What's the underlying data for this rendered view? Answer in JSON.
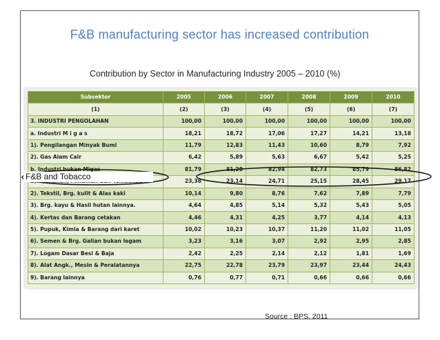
{
  "title": "F&B manufacturing sector has increased contribution",
  "subtitle": "Contribution by Sector  in  Manufacturing Industry  2005 – 2010 (%)",
  "callout_label": "F&B and Tobacco",
  "source": "Source : BPS, 2011",
  "table": {
    "header": [
      "Subsektor",
      "2005",
      "2006",
      "2007",
      "2008",
      "2009",
      "2010"
    ],
    "index_row": [
      "(1)",
      "(2)",
      "(3)",
      "(4)",
      "(5)",
      "(6)",
      "(7)"
    ],
    "rows": [
      {
        "label": "3. INDUSTRI PENGOLAHAN",
        "values": [
          "100,00",
          "100,00",
          "100,00",
          "100,00",
          "100,00",
          "100,00"
        ]
      },
      {
        "label": "a. Industri  M i g a s",
        "values": [
          "18,21",
          "18,72",
          "17,06",
          "17,27",
          "14,21",
          "13,18"
        ]
      },
      {
        "label": "1). Pengilangan Minyak Bumi",
        "values": [
          "11,79",
          "12,83",
          "11,43",
          "10,60",
          "8,79",
          "7,92"
        ]
      },
      {
        "label": "2). Gas Alam Cair",
        "values": [
          "6,42",
          "5,89",
          "5,63",
          "6,67",
          "5,42",
          "5,25"
        ]
      },
      {
        "label": "b. Industri bukan Migas",
        "values": [
          "81,79",
          "81,28",
          "82,94",
          "82,73",
          "85,79",
          "86,82"
        ]
      },
      {
        "label": "1). Makanan, Minuman dan Tembakau",
        "values": [
          "23,38",
          "23,14",
          "24,71",
          "25,15",
          "28,45",
          "29,17"
        ]
      },
      {
        "label": "2). Tekstil, Brg. kulit & Alas kaki",
        "values": [
          "10,14",
          "9,80",
          "8,76",
          "7,62",
          "7,89",
          "7,79"
        ]
      },
      {
        "label": "3). Brg. kayu & Hasil hutan lainnya.",
        "values": [
          "4,64",
          "4,85",
          "5,14",
          "5,32",
          "5,43",
          "5,05"
        ]
      },
      {
        "label": "4). Kertas dan Barang cetakan",
        "values": [
          "4,46",
          "4,31",
          "4,25",
          "3,77",
          "4,14",
          "4,13"
        ]
      },
      {
        "label": "5). Pupuk, Kimia & Barang dari karet",
        "values": [
          "10,02",
          "10,23",
          "10,37",
          "11,20",
          "11,02",
          "11,05"
        ]
      },
      {
        "label": "6). Semen & Brg. Galian bukan logam",
        "values": [
          "3,23",
          "3,16",
          "3,07",
          "2,92",
          "2,95",
          "2,85"
        ]
      },
      {
        "label": "7). Logam Dasar Besi & Baja",
        "values": [
          "2,42",
          "2,25",
          "2,14",
          "2,12",
          "1,81",
          "1,69"
        ]
      },
      {
        "label": "8). Alat Angk., Mesin & Peralatannya",
        "values": [
          "22,75",
          "22,78",
          "23,79",
          "23,97",
          "23,44",
          "24,43"
        ]
      },
      {
        "label": "9). Barang lainnya",
        "values": [
          "0,76",
          "0,77",
          "0,71",
          "0,66",
          "0,66",
          "0,66"
        ]
      }
    ]
  },
  "colors": {
    "title": "#4f81bd",
    "table_header": "#76923c",
    "row_odd": "#d7e4bc",
    "row_even": "#eaf1dd",
    "highlight_oval": "#1a1a1a"
  }
}
